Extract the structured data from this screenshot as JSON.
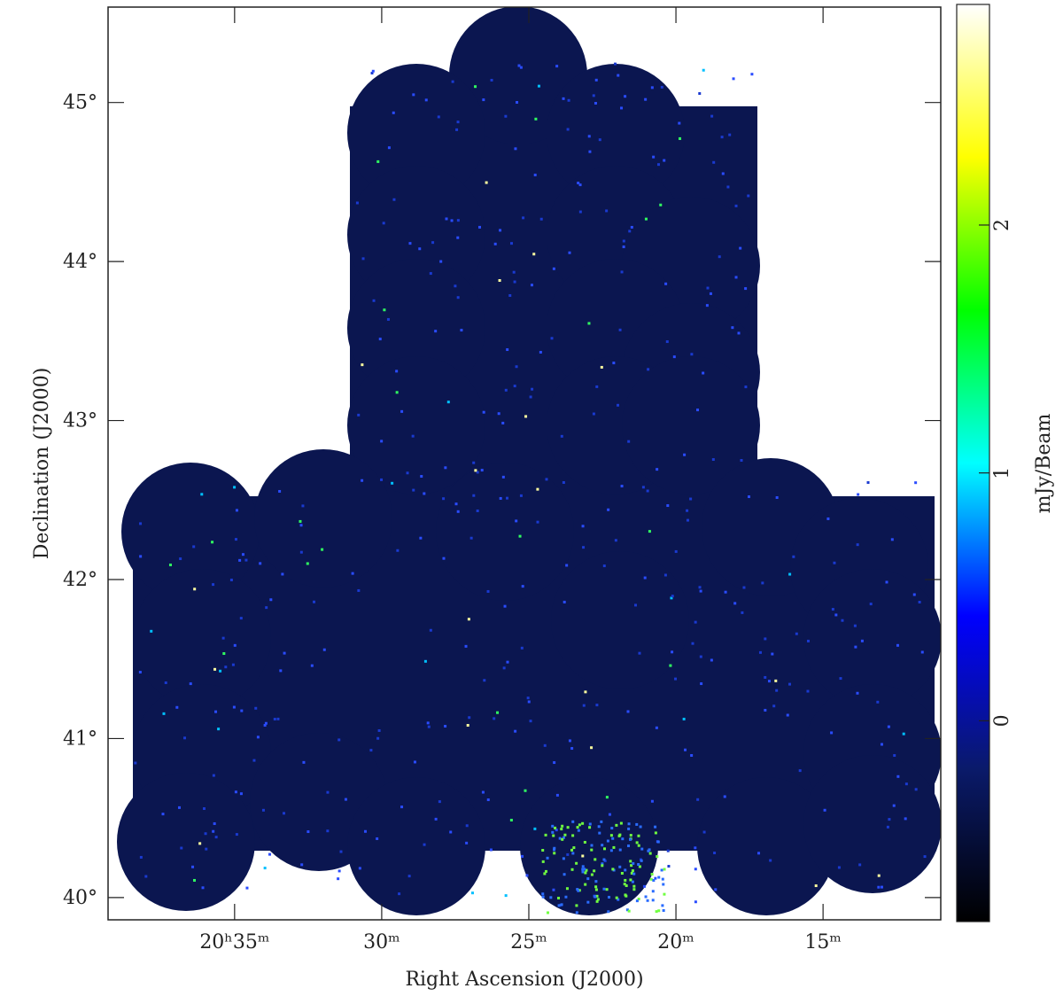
{
  "chart_data": {
    "type": "image",
    "xlabel": "Right Ascension (J2000)",
    "ylabel": "Declination (J2000)",
    "xlim": [
      39.3,
      11.0
    ],
    "xticks": [
      {
        "value": 35,
        "label": "20ʰ35ᵐ"
      },
      {
        "value": 30,
        "label": "30ᵐ"
      },
      {
        "value": 25,
        "label": "25ᵐ"
      },
      {
        "value": 20,
        "label": "20ᵐ"
      },
      {
        "value": 15,
        "label": "15ᵐ"
      }
    ],
    "ylim": [
      39.86,
      45.6
    ],
    "yticks": [
      {
        "value": 40,
        "label": "40°"
      },
      {
        "value": 41,
        "label": "41°"
      },
      {
        "value": 42,
        "label": "42°"
      },
      {
        "value": 43,
        "label": "43°"
      },
      {
        "value": 44,
        "label": "44°"
      },
      {
        "value": 45,
        "label": "45°"
      }
    ],
    "colorbar_label": "mJy/Beam",
    "clim": [
      -0.81,
      2.89
    ],
    "cticks": [
      0,
      1,
      2
    ],
    "colormap": [
      "#000000",
      "#0a1a6a",
      "#0000ff",
      "#00ffff",
      "#00ff00",
      "#ffff00",
      "#ffffff"
    ],
    "image_color": "#0b1650"
  }
}
